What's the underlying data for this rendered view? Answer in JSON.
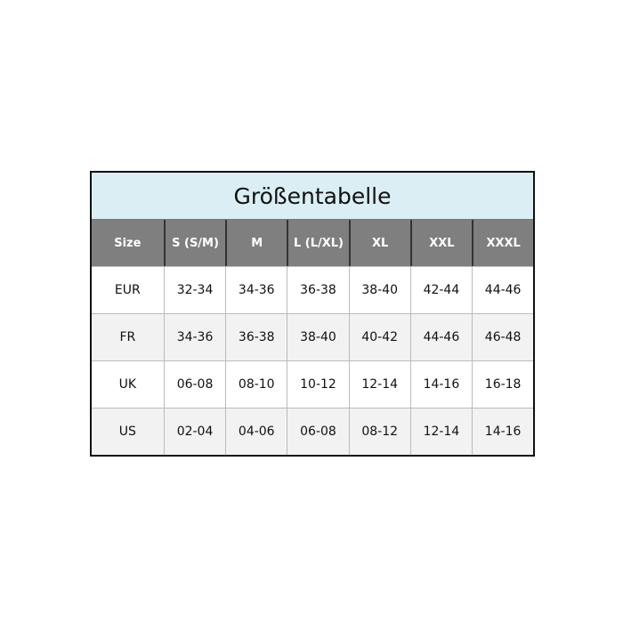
{
  "title": "Größentabelle",
  "headers": [
    "Size",
    "S (S/M)",
    "M",
    "L (L/XL)",
    "XL",
    "XXL",
    "XXXL"
  ],
  "rows": [
    [
      "EUR",
      "32-34",
      "34-36",
      "36-38",
      "38-40",
      "42-44",
      "44-46"
    ],
    [
      "FR",
      "34-36",
      "36-38",
      "38-40",
      "40-42",
      "44-46",
      "46-48"
    ],
    [
      "UK",
      "06-08",
      "08-10",
      "10-12",
      "12-14",
      "14-16",
      "16-18"
    ],
    [
      "US",
      "02-04",
      "04-06",
      "06-08",
      "08-12",
      "12-14",
      "14-16"
    ]
  ],
  "colors": {
    "title_bg": "#daeef3",
    "header_bg": "#7f7f7f",
    "alt_row_bg": "#f2f2f2"
  }
}
